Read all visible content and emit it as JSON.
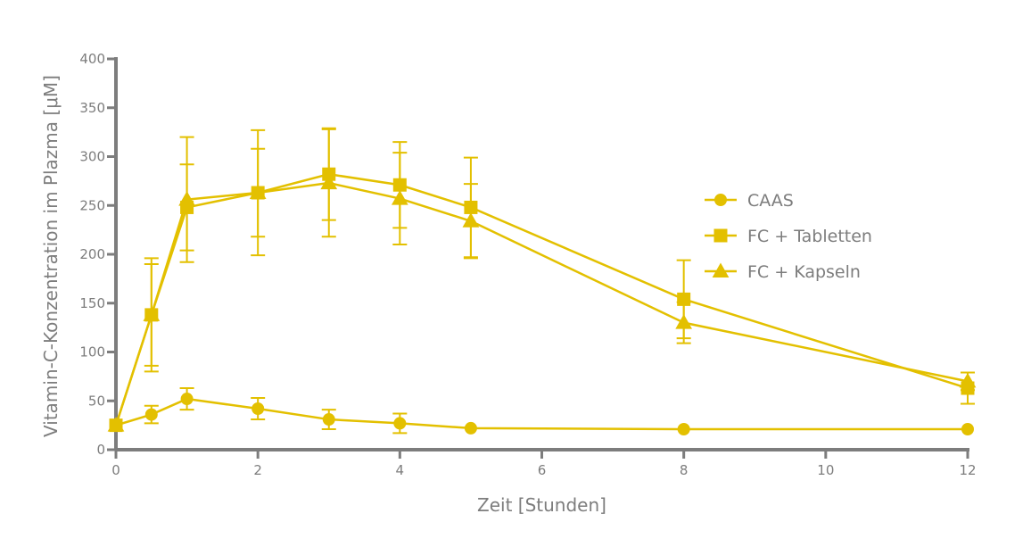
{
  "chart_data": {
    "type": "line",
    "title": "",
    "xlabel": "Zeit [Stunden]",
    "ylabel": "Vitamin-C-Konzentration im Plazma [μM]",
    "xlim": [
      0,
      12
    ],
    "ylim": [
      0,
      400
    ],
    "x_ticks": [
      0,
      2,
      4,
      6,
      8,
      10,
      12
    ],
    "y_ticks": [
      0,
      50,
      100,
      150,
      200,
      250,
      300,
      350,
      400
    ],
    "grid": false,
    "legend_position": "right",
    "series_color": "#e3c000",
    "series": [
      {
        "name": "CAAS",
        "marker": "circle",
        "points": [
          {
            "x": 0,
            "y": 25,
            "err": 0
          },
          {
            "x": 0.5,
            "y": 36,
            "err": 9
          },
          {
            "x": 1,
            "y": 52,
            "err": 11
          },
          {
            "x": 2,
            "y": 42,
            "err": 11
          },
          {
            "x": 3,
            "y": 31,
            "err": 10
          },
          {
            "x": 4,
            "y": 27,
            "err": 10
          },
          {
            "x": 5,
            "y": 22,
            "err": 0
          },
          {
            "x": 8,
            "y": 21,
            "err": 0
          },
          {
            "x": 12,
            "y": 21,
            "err": 0
          }
        ]
      },
      {
        "name": "FC + Tabletten",
        "marker": "square",
        "points": [
          {
            "x": 0,
            "y": 25,
            "err": 0
          },
          {
            "x": 0.5,
            "y": 138,
            "err": 58
          },
          {
            "x": 1,
            "y": 248,
            "err": 44
          },
          {
            "x": 2,
            "y": 263,
            "err": 64
          },
          {
            "x": 3,
            "y": 282,
            "err": 47
          },
          {
            "x": 4,
            "y": 271,
            "err": 44
          },
          {
            "x": 5,
            "y": 248,
            "err": 51
          },
          {
            "x": 8,
            "y": 154,
            "err": 40
          },
          {
            "x": 12,
            "y": 63,
            "err": 16
          }
        ]
      },
      {
        "name": "FC + Kapseln",
        "marker": "triangle",
        "points": [
          {
            "x": 0,
            "y": 25,
            "err": 0
          },
          {
            "x": 0.5,
            "y": 138,
            "err": 52
          },
          {
            "x": 1,
            "y": 256,
            "err": 64
          },
          {
            "x": 2,
            "y": 263,
            "err": 45
          },
          {
            "x": 3,
            "y": 273,
            "err": 55
          },
          {
            "x": 4,
            "y": 257,
            "err": 47
          },
          {
            "x": 5,
            "y": 234,
            "err": 38
          },
          {
            "x": 8,
            "y": 130,
            "err": 21
          },
          {
            "x": 12,
            "y": 70,
            "err": 9
          }
        ]
      }
    ]
  }
}
